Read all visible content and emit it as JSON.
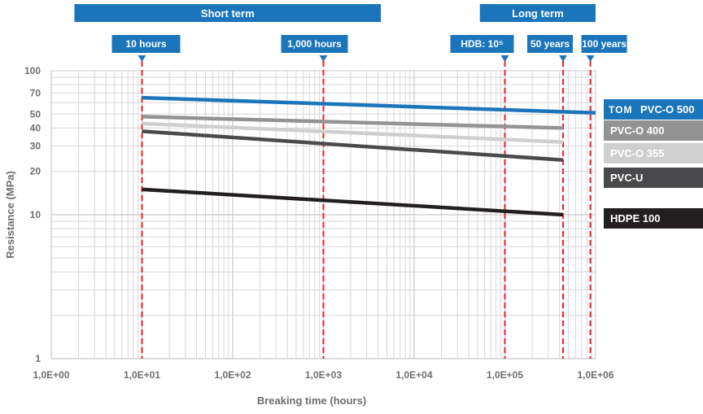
{
  "chart_data": {
    "type": "line",
    "x_scale": "log",
    "y_scale": "log",
    "xlim": [
      1,
      1000000
    ],
    "ylim": [
      1,
      100
    ],
    "grid": true,
    "xlabel": "Breaking time (hours)",
    "ylabel": "Resistance (MPa)",
    "x_tick_labels": [
      "1,0E+00",
      "1,0E+01",
      "1,0E+02",
      "1,0E+03",
      "1,0E+04",
      "1,0E+05",
      "1,0E+06"
    ],
    "y_tick_labels": [
      "1",
      "10",
      "20",
      "30",
      "40",
      "50",
      "70",
      "100"
    ],
    "y_tick_values": [
      1,
      10,
      20,
      30,
      40,
      50,
      70,
      100
    ],
    "bands": [
      {
        "label": "Short term",
        "from": 1.8,
        "to": 4300
      },
      {
        "label": "Long term",
        "from": 53000,
        "to": 1000000
      }
    ],
    "markers": [
      {
        "label": "10 hours",
        "x": 10
      },
      {
        "label": "1,000 hours",
        "x": 1000
      },
      {
        "label": "HDB: 10⁵",
        "x": 100000
      },
      {
        "label": "50 years",
        "x": 438000
      },
      {
        "label": "100 years",
        "x": 876000
      }
    ],
    "series": [
      {
        "name": "PVC-O 500",
        "color": "#1b75bb",
        "logo": "TOM",
        "x": [
          10,
          1000000
        ],
        "y": [
          65,
          51
        ]
      },
      {
        "name": "PVC-O 400",
        "color": "#939393",
        "x": [
          10,
          438000
        ],
        "y": [
          48,
          40
        ]
      },
      {
        "name": "PVC-O 355",
        "color": "#cfcfcf",
        "x": [
          10,
          438000
        ],
        "y": [
          43,
          32
        ]
      },
      {
        "name": "PVC-U",
        "color": "#4a4a4c",
        "x": [
          10,
          438000
        ],
        "y": [
          38,
          24
        ]
      },
      {
        "name": "HDPE 100",
        "color": "#231f20",
        "x": [
          10,
          438000
        ],
        "y": [
          15,
          10
        ]
      }
    ]
  }
}
